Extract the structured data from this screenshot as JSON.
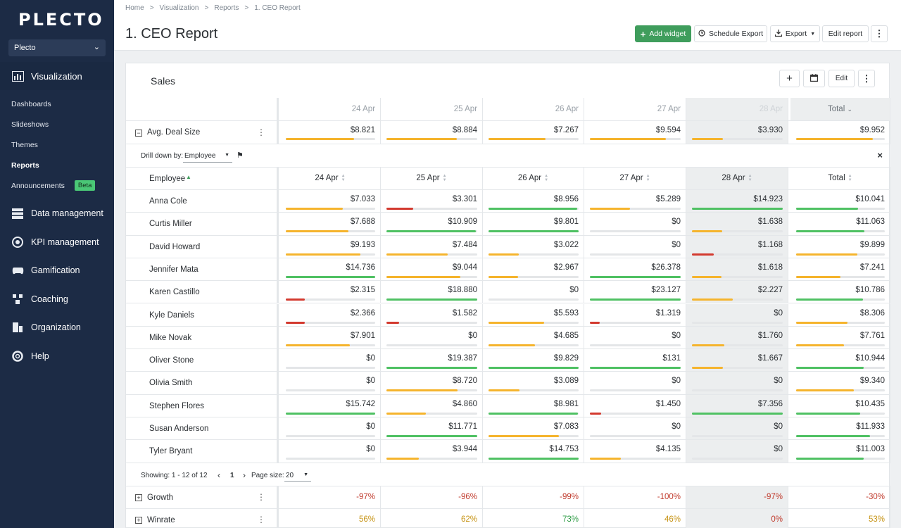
{
  "sidebar": {
    "logo": "PLECTO",
    "org": "Plecto",
    "active": "Visualization",
    "sub_items": [
      {
        "label": "Dashboards"
      },
      {
        "label": "Slideshows"
      },
      {
        "label": "Themes"
      },
      {
        "label": "Reports"
      },
      {
        "label": "Announcements",
        "badge": "Beta"
      }
    ],
    "items": [
      {
        "label": "Data management",
        "icon": "database-icon"
      },
      {
        "label": "KPI management",
        "icon": "kpi-icon"
      },
      {
        "label": "Gamification",
        "icon": "gamification-icon"
      },
      {
        "label": "Coaching",
        "icon": "coaching-icon"
      },
      {
        "label": "Organization",
        "icon": "organization-icon"
      },
      {
        "label": "Help",
        "icon": "help-icon"
      }
    ]
  },
  "breadcrumb": [
    "Home",
    ">",
    "Visualization",
    ">",
    "Reports",
    ">",
    "1. CEO Report"
  ],
  "page_title": "1. CEO Report",
  "toolbar": {
    "add_widget": "Add widget",
    "schedule_export": "Schedule Export",
    "export": "Export",
    "edit_report": "Edit report"
  },
  "widget": {
    "title": "Sales",
    "edit": "Edit",
    "dates": [
      "24 Apr",
      "25 Apr",
      "26 Apr",
      "27 Apr",
      "28 Apr"
    ],
    "total_label": "Total",
    "avg_label": "Avg. Deal Size",
    "avg_values": [
      "$8.821",
      "$8.884",
      "$7.267",
      "$9.594",
      "$3.930",
      "$9.952"
    ],
    "drill_label": "Drill down by:",
    "drill_value": "Employee",
    "employee_header": "Employee",
    "employees": [
      {
        "name": "Anna Cole",
        "values": [
          "$7.033",
          "$3.301",
          "$8.956",
          "$5.289",
          "$14.923",
          "$10.041"
        ]
      },
      {
        "name": "Curtis Miller",
        "values": [
          "$7.688",
          "$10.909",
          "$9.801",
          "$0",
          "$1.638",
          "$11.063"
        ]
      },
      {
        "name": "David Howard",
        "values": [
          "$9.193",
          "$7.484",
          "$3.022",
          "$0",
          "$1.168",
          "$9.899"
        ]
      },
      {
        "name": "Jennifer Mata",
        "values": [
          "$14.736",
          "$9.044",
          "$2.967",
          "$26.378",
          "$1.618",
          "$7.241"
        ]
      },
      {
        "name": "Karen Castillo",
        "values": [
          "$2.315",
          "$18.880",
          "$0",
          "$23.127",
          "$2.227",
          "$10.786"
        ]
      },
      {
        "name": "Kyle Daniels",
        "values": [
          "$2.366",
          "$1.582",
          "$5.593",
          "$1.319",
          "$0",
          "$8.306"
        ]
      },
      {
        "name": "Mike Novak",
        "values": [
          "$7.901",
          "$0",
          "$4.685",
          "$0",
          "$1.760",
          "$7.761"
        ]
      },
      {
        "name": "Oliver Stone",
        "values": [
          "$0",
          "$19.387",
          "$9.829",
          "$131",
          "$1.667",
          "$10.944"
        ]
      },
      {
        "name": "Olivia Smith",
        "values": [
          "$0",
          "$8.720",
          "$3.089",
          "$0",
          "$0",
          "$9.340"
        ]
      },
      {
        "name": "Stephen Flores",
        "values": [
          "$15.742",
          "$4.860",
          "$8.981",
          "$1.450",
          "$7.356",
          "$10.435"
        ]
      },
      {
        "name": "Susan Anderson",
        "values": [
          "$0",
          "$11.771",
          "$7.083",
          "$0",
          "$0",
          "$11.933"
        ]
      },
      {
        "name": "Tyler Bryant",
        "values": [
          "$0",
          "$3.944",
          "$14.753",
          "$4.135",
          "$0",
          "$11.003"
        ]
      }
    ],
    "pager": {
      "showing": "Showing: 1 - 12 of 12",
      "page": "1",
      "page_size_label": "Page size:",
      "page_size": "20"
    },
    "growth": {
      "label": "Growth",
      "values": [
        "-97%",
        "-96%",
        "-99%",
        "-100%",
        "-97%",
        "-30%"
      ]
    },
    "winrate": {
      "label": "Winrate",
      "values": [
        "56%",
        "62%",
        "73%",
        "46%",
        "0%",
        "53%"
      ]
    }
  }
}
